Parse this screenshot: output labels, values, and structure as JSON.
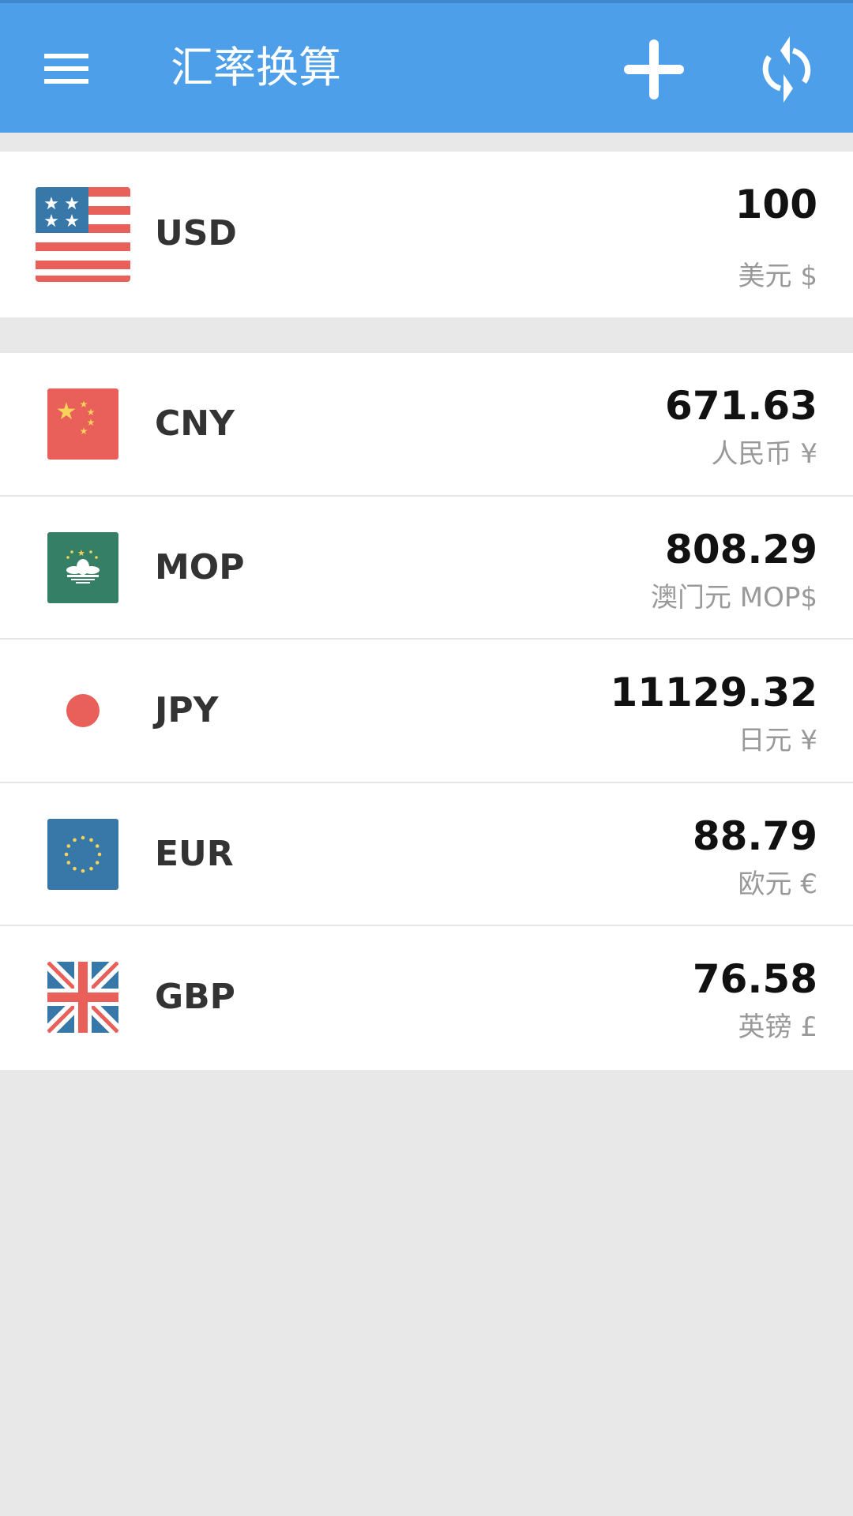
{
  "header": {
    "title": "汇率换算",
    "menu_icon": "menu-icon",
    "add_icon": "plus-icon",
    "refresh_icon": "refresh-icon",
    "color": "#4d9fe9"
  },
  "base": {
    "code": "USD",
    "value": "100",
    "name": "美元 $"
  },
  "rates": [
    {
      "code": "CNY",
      "value": "671.63",
      "name": "人民币 ¥"
    },
    {
      "code": "MOP",
      "value": "808.29",
      "name": "澳门元 MOP$"
    },
    {
      "code": "JPY",
      "value": "11129.32",
      "name": "日元 ¥"
    },
    {
      "code": "EUR",
      "value": "88.79",
      "name": "欧元 €"
    },
    {
      "code": "GBP",
      "value": "76.58",
      "name": "英镑 £"
    }
  ]
}
